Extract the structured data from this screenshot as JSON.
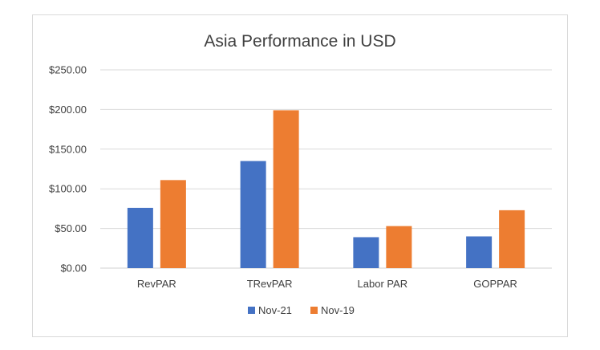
{
  "chart_data": {
    "type": "bar",
    "title": "Asia Performance in USD",
    "categories": [
      "RevPAR",
      "TRevPAR",
      "Labor PAR",
      "GOPPAR"
    ],
    "series": [
      {
        "name": "Nov-21",
        "color": "#4472C4",
        "values": [
          76,
          135,
          39,
          40
        ]
      },
      {
        "name": "Nov-19",
        "color": "#ED7D31",
        "values": [
          111,
          199,
          53,
          73
        ]
      }
    ],
    "ylim": [
      0,
      250
    ],
    "yticks": [
      0,
      50,
      100,
      150,
      200,
      250
    ],
    "ytick_labels": [
      "$0.00",
      "$50.00",
      "$100.00",
      "$150.00",
      "$200.00",
      "$250.00"
    ],
    "xlabel": "",
    "ylabel": "",
    "grid": true,
    "legend_position": "bottom"
  }
}
